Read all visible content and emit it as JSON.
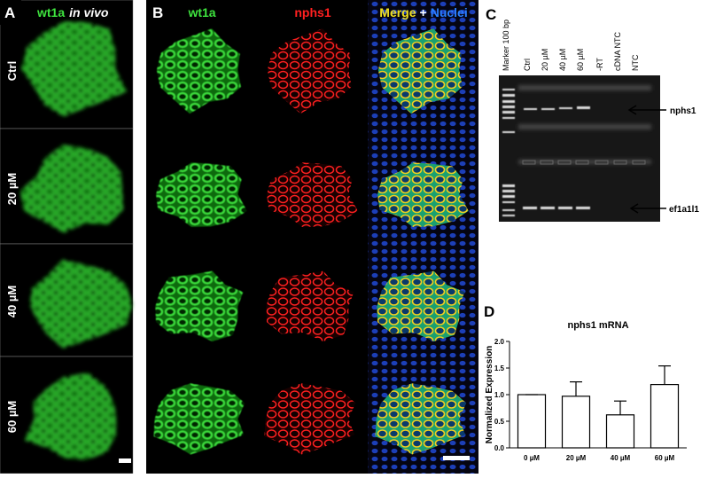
{
  "panels": {
    "A": {
      "label": "A",
      "title": "wt1a",
      "title_suffix": "in vivo",
      "rows": [
        "Ctrl",
        "20 µM",
        "40 µM",
        "60 µM"
      ]
    },
    "B": {
      "label": "B",
      "col1": "wt1a",
      "col2": "nphs1",
      "col3_merge": "Merge",
      "col3_plus": "+",
      "col3_nuclei": "Nuclei"
    },
    "C": {
      "label": "C",
      "lanes": [
        "Marker 100 bp",
        "Ctrl",
        "20 µM",
        "40 µM",
        "60 µM",
        "-RT",
        "cDNA  NTC",
        "NTC"
      ],
      "bands": [
        "nphs1",
        "ef1a1l1"
      ]
    }
  },
  "chart_data": {
    "type": "bar",
    "label": "D",
    "title": "nphs1 mRNA",
    "y_label": "Normalized Expression",
    "categories": [
      "0 µM",
      "20 µM",
      "40 µM",
      "60 µM"
    ],
    "values": [
      1.0,
      0.97,
      0.62,
      1.19
    ],
    "errors": [
      0,
      0.27,
      0.26,
      0.35
    ],
    "color": "#ffffff",
    "ylim": [
      0,
      2.0
    ],
    "yticks": [
      {
        "value": 0,
        "label": "0.0"
      },
      {
        "value": 0.5,
        "label": "0.5"
      },
      {
        "value": 1.0,
        "label": "1.0"
      },
      {
        "value": 1.5,
        "label": "1.5"
      },
      {
        "value": 2.0,
        "label": "2.0"
      }
    ]
  }
}
